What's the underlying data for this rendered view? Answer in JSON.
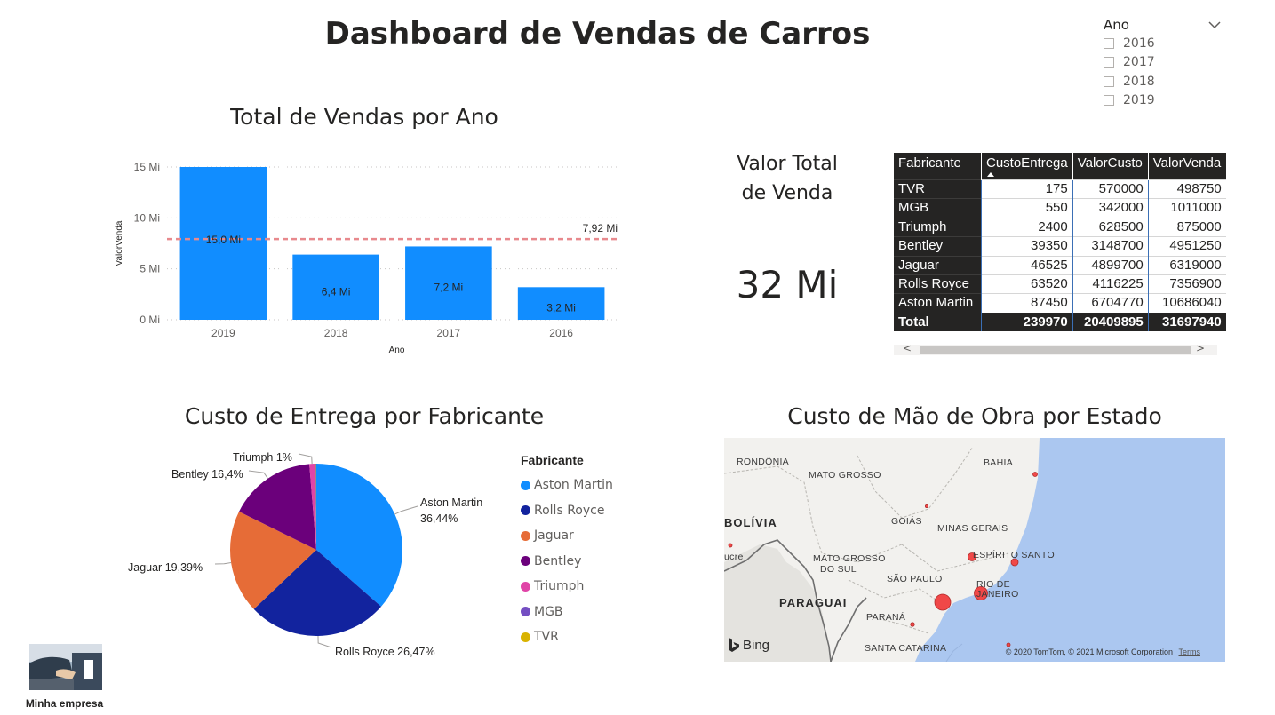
{
  "dashboard": {
    "title": "Dashboard de Vendas de Carros"
  },
  "slicer": {
    "title": "Ano",
    "options": [
      "2016",
      "2017",
      "2018",
      "2019"
    ]
  },
  "bar_chart": {
    "title": "Total de Vendas por Ano",
    "color": "#118DFF",
    "average_line_color": "#E8898D"
  },
  "kpi": {
    "label_line1": "Valor Total",
    "label_line2": "de Venda",
    "value": "32 Mi"
  },
  "table": {
    "columns": [
      "Fabricante",
      "CustoEntrega",
      "ValorCusto",
      "ValorVenda"
    ],
    "sorted_column": "CustoEntrega",
    "rows": [
      [
        "TVR",
        "175",
        "570000",
        "498750"
      ],
      [
        "MGB",
        "550",
        "342000",
        "1011000"
      ],
      [
        "Triumph",
        "2400",
        "628500",
        "875000"
      ],
      [
        "Bentley",
        "39350",
        "3148700",
        "4951250"
      ],
      [
        "Jaguar",
        "46525",
        "4899700",
        "6319000"
      ],
      [
        "Rolls Royce",
        "63520",
        "4116225",
        "7356900"
      ],
      [
        "Aston Martin",
        "87450",
        "6704770",
        "10686040"
      ]
    ],
    "total": [
      "Total",
      "239970",
      "20409895",
      "31697940"
    ],
    "scroll_left": "<",
    "scroll_right": ">"
  },
  "pie_chart": {
    "title": "Custo de Entrega por Fabricante",
    "legend_title": "Fabricante"
  },
  "map": {
    "title": "Custo de Mão de Obra por Estado",
    "labels": {
      "rondonia": "RONDÔNIA",
      "mato_grosso": "MATO GROSSO",
      "bahia": "BAHIA",
      "bolivia": "BOLÍVIA",
      "goias": "GOIÁS",
      "minas_gerais": "MINAS GERAIS",
      "ucre": "ucre",
      "ms_line1": "MATO GROSSO",
      "ms_line2": "DO SUL",
      "espirito_santo": "ESPÍRITO SANTO",
      "sao_paulo": "SÃO PAULO",
      "rio_line1": "RIO DE",
      "rio_line2": "JANEIRO",
      "paraguai": "PARAGUAI",
      "parana": "PARANÁ",
      "santa_catarina": "SANTA CATARINA"
    },
    "brand": "Bing",
    "attribution": "© 2020 TomTom, © 2021 Microsoft Corporation",
    "terms": "Terms",
    "land_color": "#f2f1ee",
    "water_color": "#abc7f0",
    "bubble_color": "#f04848"
  },
  "company": {
    "name": "Minha empresa"
  },
  "chart_data": [
    {
      "type": "bar",
      "title": "Total de Vendas por Ano",
      "xlabel": "Ano",
      "ylabel": "ValorVenda",
      "categories": [
        "2019",
        "2018",
        "2017",
        "2016"
      ],
      "values": [
        15.0,
        6.4,
        7.2,
        3.2
      ],
      "data_labels": [
        "15,0 Mi",
        "6,4 Mi",
        "7,2 Mi",
        "3,2 Mi"
      ],
      "yticks": [
        0,
        5,
        10,
        15
      ],
      "ytick_labels": [
        "0 Mi",
        "5 Mi",
        "10 Mi",
        "15 Mi"
      ],
      "ylim": [
        0,
        15
      ],
      "average_line": 7.92,
      "average_label": "7,92 Mi",
      "grid": true
    },
    {
      "type": "pie",
      "title": "Custo de Entrega por Fabricante",
      "legend_position": "right",
      "slices": [
        {
          "name": "Aston Martin",
          "value": 36.44,
          "label_name": "Aston Martin",
          "label_pct": "36,44%",
          "color": "#118DFF"
        },
        {
          "name": "Rolls Royce",
          "value": 26.47,
          "label_name": "Rolls Royce",
          "label_pct": "26,47%",
          "color": "#12239E"
        },
        {
          "name": "Jaguar",
          "value": 19.39,
          "label_name": "Jaguar",
          "label_pct": "19,39%",
          "color": "#E66C37"
        },
        {
          "name": "Bentley",
          "value": 16.4,
          "label_name": "Bentley",
          "label_pct": "16,4%",
          "color": "#6B007B"
        },
        {
          "name": "Triumph",
          "value": 1.0,
          "label_name": "Triumph",
          "label_pct": "1%",
          "color": "#E044A7"
        },
        {
          "name": "MGB",
          "value": 0.23,
          "label_name": "",
          "label_pct": "",
          "color": "#744EC2"
        },
        {
          "name": "TVR",
          "value": 0.07,
          "label_name": "",
          "label_pct": "",
          "color": "#D9B300"
        }
      ]
    }
  ]
}
